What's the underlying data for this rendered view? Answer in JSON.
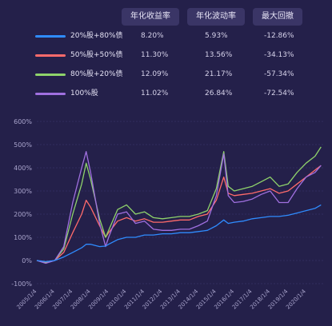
{
  "table": {
    "headers": [
      "年化收益率",
      "年化波动率",
      "最大回撤"
    ],
    "rows": [
      {
        "name": "20%股+80%债",
        "color": "#2f8cff",
        "ret": "8.20%",
        "vol": "5.93%",
        "dd": "-12.86%"
      },
      {
        "name": "50%股+50%债",
        "color": "#ff6b6b",
        "ret": "11.30%",
        "vol": "13.56%",
        "dd": "-34.13%"
      },
      {
        "name": "80%股+20%债",
        "color": "#8fd36b",
        "ret": "12.09%",
        "vol": "21.17%",
        "dd": "-57.34%"
      },
      {
        "name": "100%股",
        "color": "#a070e0",
        "ret": "11.02%",
        "vol": "26.84%",
        "dd": "-72.54%"
      }
    ]
  },
  "chart_data": {
    "type": "line",
    "title": "",
    "xlabel": "",
    "ylabel": "",
    "ylim": [
      -100,
      600
    ],
    "yticks": [
      "600%",
      "500%",
      "400%",
      "300%",
      "200%",
      "100%",
      "0%",
      "-100%"
    ],
    "xticks": [
      "2005/1/4",
      "2006/1/4",
      "2007/1/4",
      "2008/1/4",
      "2009/1/4",
      "2010/1/4",
      "2011/1/4",
      "2012/1/4",
      "2013/1/4",
      "2014/1/4",
      "2015/1/4",
      "2016/1/4",
      "2017/1/4",
      "2018/1/4",
      "2019/1/4",
      "2020/1/4"
    ],
    "x": [
      "2005/1",
      "2005/7",
      "2006/1",
      "2006/7",
      "2007/1",
      "2007/7",
      "2007/10",
      "2008/1",
      "2008/7",
      "2008/11",
      "2009/1",
      "2009/7",
      "2010/1",
      "2010/7",
      "2011/1",
      "2011/7",
      "2012/1",
      "2012/7",
      "2013/1",
      "2013/7",
      "2014/1",
      "2014/7",
      "2015/1",
      "2015/6",
      "2015/9",
      "2016/1",
      "2016/7",
      "2017/1",
      "2017/7",
      "2018/1",
      "2018/7",
      "2019/1",
      "2019/7",
      "2020/1",
      "2020/7",
      "2020/11"
    ],
    "series": [
      {
        "name": "20%股+80%债",
        "color": "#2f8cff",
        "values": [
          0,
          -5,
          0,
          15,
          35,
          55,
          70,
          70,
          60,
          62,
          70,
          90,
          100,
          100,
          110,
          110,
          115,
          115,
          120,
          120,
          125,
          130,
          150,
          175,
          160,
          165,
          170,
          180,
          185,
          190,
          190,
          195,
          205,
          215,
          225,
          240
        ]
      },
      {
        "name": "50%股+50%债",
        "color": "#ff6b6b",
        "values": [
          0,
          -8,
          0,
          35,
          120,
          200,
          260,
          230,
          150,
          100,
          120,
          170,
          185,
          170,
          180,
          165,
          165,
          170,
          175,
          175,
          190,
          200,
          260,
          360,
          290,
          280,
          285,
          290,
          300,
          310,
          290,
          300,
          330,
          360,
          390,
          410
        ]
      },
      {
        "name": "80%股+20%债",
        "color": "#8fd36b",
        "values": [
          0,
          -10,
          0,
          50,
          200,
          330,
          420,
          350,
          180,
          100,
          130,
          220,
          240,
          200,
          210,
          185,
          180,
          185,
          190,
          190,
          200,
          215,
          310,
          470,
          320,
          300,
          310,
          320,
          340,
          360,
          320,
          330,
          380,
          420,
          450,
          490
        ]
      },
      {
        "name": "100%股",
        "color": "#a070e0",
        "values": [
          0,
          -12,
          0,
          60,
          250,
          400,
          470,
          380,
          160,
          60,
          100,
          200,
          210,
          160,
          170,
          135,
          130,
          130,
          135,
          135,
          150,
          170,
          280,
          460,
          280,
          250,
          255,
          265,
          285,
          300,
          250,
          250,
          310,
          360,
          380,
          410
        ]
      }
    ]
  }
}
